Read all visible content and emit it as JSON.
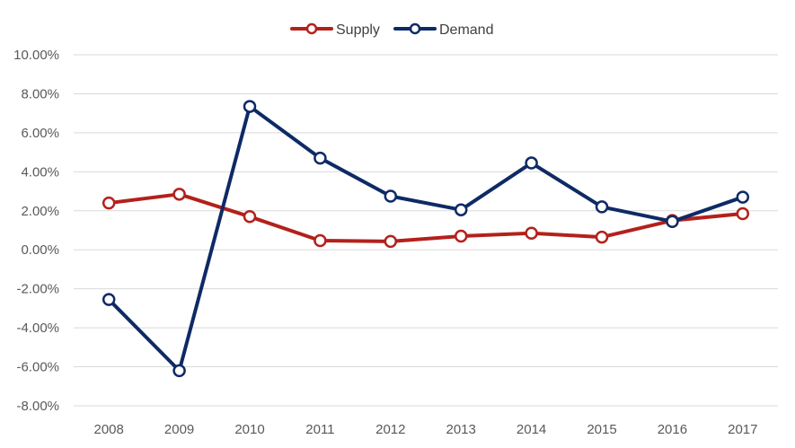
{
  "chart_data": {
    "type": "line",
    "title": "",
    "xlabel": "",
    "ylabel": "",
    "categories": [
      "2008",
      "2009",
      "2010",
      "2011",
      "2012",
      "2013",
      "2014",
      "2015",
      "2016",
      "2017"
    ],
    "ylim": [
      -8,
      10
    ],
    "ytick_step": 2,
    "ytick_labels": [
      "-8.00%",
      "-6.00%",
      "-4.00%",
      "-2.00%",
      "0.00%",
      "2.00%",
      "4.00%",
      "6.00%",
      "8.00%",
      "10.00%"
    ],
    "grid": true,
    "legend_position": "top-center",
    "series": [
      {
        "name": "Supply",
        "color": "#b3211b",
        "values": [
          2.4,
          2.85,
          1.7,
          0.47,
          0.43,
          0.7,
          0.85,
          0.65,
          1.5,
          1.85
        ]
      },
      {
        "name": "Demand",
        "color": "#0e2a66",
        "values": [
          -2.55,
          -6.2,
          7.35,
          4.7,
          2.75,
          2.05,
          4.45,
          2.2,
          1.45,
          2.7
        ]
      }
    ]
  }
}
